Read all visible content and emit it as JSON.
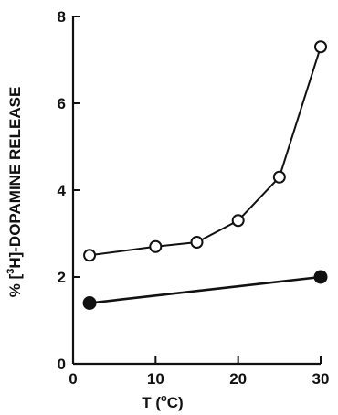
{
  "chart_data": {
    "type": "line",
    "xlabel_parts": [
      "T (",
      "o",
      "C)"
    ],
    "ylabel_parts": [
      "% [",
      "3",
      "H]-DOPAMINE RELEASE"
    ],
    "xlim": [
      0,
      30
    ],
    "ylim": [
      0,
      8
    ],
    "x_ticks": [
      0,
      10,
      20,
      30
    ],
    "y_ticks": [
      0,
      2,
      4,
      6,
      8
    ],
    "x_tick_labels": [
      "0",
      "10",
      "20",
      "30"
    ],
    "y_tick_labels": [
      "0",
      "2",
      "4",
      "6",
      "8"
    ],
    "grid": false,
    "series": [
      {
        "marker": "open-circle",
        "x": [
          2,
          10,
          15,
          20,
          25,
          30
        ],
        "y": [
          2.5,
          2.7,
          2.8,
          3.3,
          4.3,
          7.3
        ]
      },
      {
        "marker": "filled-circle",
        "x": [
          2,
          30
        ],
        "y": [
          1.4,
          2.0
        ]
      }
    ]
  }
}
